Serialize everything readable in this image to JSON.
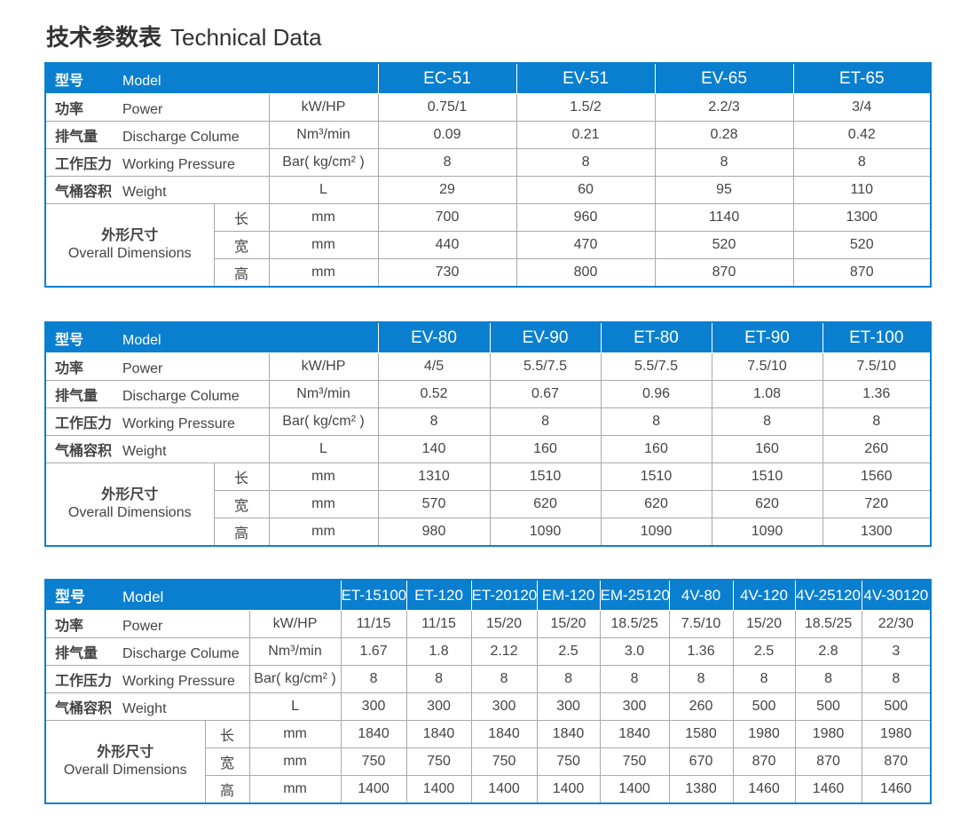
{
  "title": {
    "cn": "技术参数表",
    "en": "Technical Data"
  },
  "labels": {
    "model": {
      "cn": "型号",
      "en": "Model"
    },
    "power": {
      "cn": "功率",
      "en": "Power",
      "unit": "kW/HP"
    },
    "discharge": {
      "cn": "排气量",
      "en": "Discharge Colume",
      "unit": "Nm³/min"
    },
    "pressure": {
      "cn": "工作压力",
      "en": "Working Pressure",
      "unit": "Bar( kg/cm² )"
    },
    "weight": {
      "cn": "气桶容积",
      "en": "Weight",
      "unit": "L"
    },
    "dims": {
      "cn": "外形尺寸",
      "en": "Overall Dimensions",
      "length": "长",
      "width": "宽",
      "height": "高",
      "unit": "mm"
    }
  },
  "header_color": "#0a7fd0",
  "tables": [
    {
      "models": [
        "EC-51",
        "EV-51",
        "EV-65",
        "ET-65"
      ],
      "power": [
        "0.75/1",
        "1.5/2",
        "2.2/3",
        "3/4"
      ],
      "discharge": [
        "0.09",
        "0.21",
        "0.28",
        "0.42"
      ],
      "pressure": [
        "8",
        "8",
        "8",
        "8"
      ],
      "weight": [
        "29",
        "60",
        "95",
        "110"
      ],
      "length": [
        "700",
        "960",
        "1140",
        "1300"
      ],
      "width": [
        "440",
        "470",
        "520",
        "520"
      ],
      "height": [
        "730",
        "800",
        "870",
        "870"
      ]
    },
    {
      "models": [
        "EV-80",
        "EV-90",
        "ET-80",
        "ET-90",
        "ET-100"
      ],
      "power": [
        "4/5",
        "5.5/7.5",
        "5.5/7.5",
        "7.5/10",
        "7.5/10"
      ],
      "discharge": [
        "0.52",
        "0.67",
        "0.96",
        "1.08",
        "1.36"
      ],
      "pressure": [
        "8",
        "8",
        "8",
        "8",
        "8"
      ],
      "weight": [
        "140",
        "160",
        "160",
        "160",
        "260"
      ],
      "length": [
        "1310",
        "1510",
        "1510",
        "1510",
        "1560"
      ],
      "width": [
        "570",
        "620",
        "620",
        "620",
        "720"
      ],
      "height": [
        "980",
        "1090",
        "1090",
        "1090",
        "1300"
      ]
    },
    {
      "models": [
        "ET-15100",
        "ET-120",
        "ET-20120",
        "EM-120",
        "EM-25120",
        "4V-80",
        "4V-120",
        "4V-25120",
        "4V-30120"
      ],
      "power": [
        "11/15",
        "11/15",
        "15/20",
        "15/20",
        "18.5/25",
        "7.5/10",
        "15/20",
        "18.5/25",
        "22/30"
      ],
      "discharge": [
        "1.67",
        "1.8",
        "2.12",
        "2.5",
        "3.0",
        "1.36",
        "2.5",
        "2.8",
        "3"
      ],
      "pressure": [
        "8",
        "8",
        "8",
        "8",
        "8",
        "8",
        "8",
        "8",
        "8"
      ],
      "weight": [
        "300",
        "300",
        "300",
        "300",
        "300",
        "260",
        "500",
        "500",
        "500"
      ],
      "length": [
        "1840",
        "1840",
        "1840",
        "1840",
        "1840",
        "1580",
        "1980",
        "1980",
        "1980"
      ],
      "width": [
        "750",
        "750",
        "750",
        "750",
        "750",
        "670",
        "870",
        "870",
        "870"
      ],
      "height": [
        "1400",
        "1400",
        "1400",
        "1400",
        "1400",
        "1380",
        "1460",
        "1460",
        "1460"
      ]
    }
  ]
}
